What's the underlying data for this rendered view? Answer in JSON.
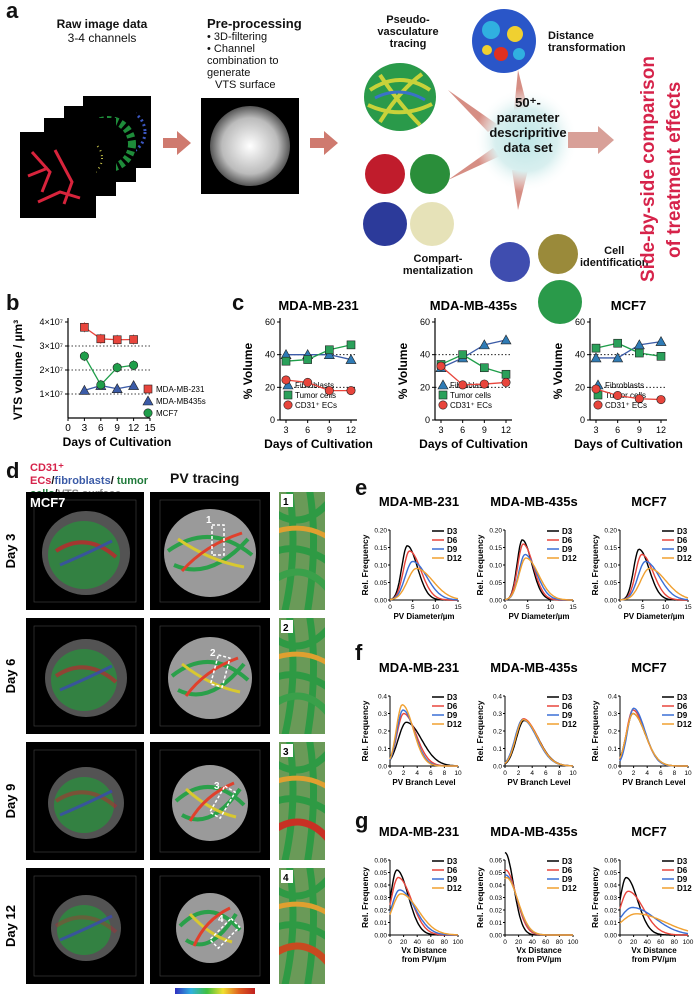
{
  "panel_a": {
    "label": "a",
    "raw": {
      "title": "Raw image data",
      "sub": "3-4 channels"
    },
    "prep": {
      "title": "Pre-processing",
      "b1": "• 3D-filtering",
      "b2": "• Channel combination to generate",
      "b3": "VTS surface"
    },
    "pseudo": {
      "l1": "Pseudo-",
      "l2": "vasculature",
      "l3": "tracing"
    },
    "dist": {
      "l1": "Distance",
      "l2": "transformation"
    },
    "center": {
      "l1": "50⁺-",
      "l2": "parameter",
      "l3": "descripritive",
      "l4": "data set"
    },
    "comp": {
      "l1": "Compart-",
      "l2": "mentalization"
    },
    "cell": {
      "l1": "Cell",
      "l2": "identification"
    },
    "side": {
      "l1": "Side-by-side comparison",
      "l2": "of treatment effects"
    },
    "colors": {
      "accent": "#d6234a",
      "arrow": "#cf7a6f"
    }
  },
  "panel_b": {
    "label": "b"
  },
  "panel_c": {
    "label": "c"
  },
  "panel_d": {
    "label": "d",
    "legend_red": "CD31⁺ ECs",
    "legend_slash1": "/",
    "legend_blue": "fibroblasts",
    "legend_slash2": "/",
    "legend_green": "tumor cells",
    "legend_slash3": "/",
    "legend_grey": "VTS surface",
    "pv_title": "PV tracing",
    "cell_line": "MCF7",
    "days": [
      "Day 3",
      "Day 6",
      "Day 9",
      "Day 12"
    ],
    "zooms": [
      "1",
      "2",
      "3",
      "4"
    ]
  },
  "panel_e": {
    "label": "e"
  },
  "panel_f": {
    "label": "f"
  },
  "panel_g": {
    "label": "g"
  },
  "chart_data": [
    {
      "id": "b",
      "type": "line",
      "x": [
        3,
        6,
        9,
        12
      ],
      "xlabel": "Days of Cultivation",
      "ylabel": "VTS volume / µm³",
      "xticks": [
        "0",
        "3",
        "6",
        "9",
        "12",
        "15"
      ],
      "yticks": [
        "1×10⁷",
        "2×10⁷",
        "3×10⁷",
        "4×10⁷"
      ],
      "xlim": [
        0,
        15
      ],
      "ylim": [
        0,
        40000000
      ],
      "dotted_y": [
        10000000,
        20000000,
        30000000
      ],
      "series": [
        {
          "name": "MDA-MB-231",
          "color": "#e8453c",
          "marker": "square",
          "values": [
            37800000,
            33000000,
            32600000,
            32700000
          ]
        },
        {
          "name": "MDA-MB435s",
          "color": "#3b5ba7",
          "marker": "triangle",
          "values": [
            11500000,
            13500000,
            12200000,
            13500000
          ]
        },
        {
          "name": "MCF7",
          "color": "#1f9e4a",
          "marker": "circle",
          "values": [
            25800000,
            13800000,
            21000000,
            22000000
          ]
        }
      ]
    },
    {
      "id": "c",
      "type": "line",
      "panels": [
        {
          "title": "MDA-MB-231",
          "x": [
            3,
            6,
            9,
            12
          ],
          "series": [
            {
              "name": "Fibroblasts",
              "values": [
                40,
                40,
                40,
                37
              ]
            },
            {
              "name": "Tumor cells",
              "values": [
                36,
                37,
                43,
                46
              ]
            },
            {
              "name": "CD31⁺ ECs",
              "values": [
                24.5,
                23,
                18,
                18
              ]
            }
          ]
        },
        {
          "title": "MDA-MB-435s",
          "x": [
            3,
            6,
            9,
            12
          ],
          "series": [
            {
              "name": "Fibroblasts",
              "values": [
                32,
                38,
                46,
                49
              ]
            },
            {
              "name": "Tumor cells",
              "values": [
                34,
                40,
                32,
                28
              ]
            },
            {
              "name": "CD31⁺ ECs",
              "values": [
                33,
                21.5,
                22,
                23
              ]
            }
          ]
        },
        {
          "title": "MCF7",
          "x": [
            3,
            6,
            9,
            12
          ],
          "series": [
            {
              "name": "Fibroblasts",
              "values": [
                38,
                38,
                46,
                48
              ]
            },
            {
              "name": "Tumor cells",
              "values": [
                44,
                47,
                41,
                39
              ]
            },
            {
              "name": "CD31⁺ ECs",
              "values": [
                19,
                15,
                13,
                12.5
              ]
            }
          ]
        }
      ],
      "xlabel": "Days of Cultivation",
      "ylabel": "% Volume",
      "xticks": [
        "3",
        "6",
        "9",
        "12"
      ],
      "yticks": [
        "0",
        "20",
        "40",
        "60"
      ],
      "ylim": [
        0,
        60
      ],
      "dotted_y": [
        20,
        40
      ],
      "styles": [
        {
          "color": "#3b5ba7",
          "marker": "triangle",
          "fill": "#2f7bb5"
        },
        {
          "color": "#1f9e4a",
          "marker": "square",
          "fill": "#2aa05a"
        },
        {
          "color": "#e8453c",
          "marker": "circle",
          "fill": "#e8453c"
        }
      ]
    },
    {
      "id": "e",
      "type": "line",
      "titles": [
        "MDA-MB-231",
        "MDA-MB-435s",
        "MCF7"
      ],
      "xlabel": "PV Diameter/µm",
      "ylabel": "Rel. Frequency",
      "xticks": [
        "0",
        "5",
        "10",
        "15"
      ],
      "yticks": [
        "0.00",
        "0.05",
        "0.10",
        "0.15",
        "0.20"
      ],
      "xlim": [
        0,
        15
      ],
      "ylim": [
        0,
        0.2
      ],
      "legend": [
        "D3",
        "D6",
        "D9",
        "D12"
      ],
      "colors": [
        "#000000",
        "#e8453c",
        "#3b6fd6",
        "#f0a030"
      ],
      "curves": [
        [
          {
            "m": 3.8,
            "p": 0.155,
            "w": 1.6
          },
          {
            "m": 4.3,
            "p": 0.14,
            "w": 1.8
          },
          {
            "m": 5.0,
            "p": 0.11,
            "w": 2.2
          },
          {
            "m": 5.8,
            "p": 0.09,
            "w": 2.6
          }
        ],
        [
          {
            "m": 3.8,
            "p": 0.172,
            "w": 1.5
          },
          {
            "m": 4.0,
            "p": 0.16,
            "w": 1.6
          },
          {
            "m": 4.4,
            "p": 0.13,
            "w": 1.8
          },
          {
            "m": 4.6,
            "p": 0.12,
            "w": 2.0
          }
        ],
        [
          {
            "m": 4.2,
            "p": 0.145,
            "w": 1.6
          },
          {
            "m": 4.8,
            "p": 0.13,
            "w": 1.8
          },
          {
            "m": 5.6,
            "p": 0.11,
            "w": 2.2
          },
          {
            "m": 6.5,
            "p": 0.09,
            "w": 2.6
          }
        ]
      ]
    },
    {
      "id": "f",
      "type": "line",
      "titles": [
        "MDA-MB-231",
        "MDA-MB-435s",
        "MCF7"
      ],
      "xlabel": "PV Branch Level",
      "ylabel": "Rel. Frequency",
      "xticks": [
        "0",
        "2",
        "4",
        "6",
        "8",
        "10"
      ],
      "yticks": [
        "0.0",
        "0.1",
        "0.2",
        "0.3",
        "0.4"
      ],
      "xlim": [
        0,
        10
      ],
      "ylim": [
        0,
        0.4
      ],
      "legend": [
        "D3",
        "D6",
        "D9",
        "D12"
      ],
      "colors": [
        "#000000",
        "#e8453c",
        "#3b6fd6",
        "#f0a030"
      ],
      "curves": [
        [
          {
            "m": 2.4,
            "p": 0.25,
            "w": 1.6
          },
          {
            "m": 2.0,
            "p": 0.3,
            "w": 1.3
          },
          {
            "m": 1.9,
            "p": 0.32,
            "w": 1.2
          },
          {
            "m": 1.8,
            "p": 0.35,
            "w": 1.15
          }
        ],
        [
          {
            "m": 2.8,
            "p": 0.26,
            "w": 1.5
          },
          {
            "m": 2.7,
            "p": 0.27,
            "w": 1.5
          },
          {
            "m": 2.6,
            "p": 0.265,
            "w": 1.5
          },
          {
            "m": 2.7,
            "p": 0.265,
            "w": 1.5
          }
        ],
        [
          {
            "m": 1.9,
            "p": 0.3,
            "w": 1.3
          },
          {
            "m": 1.9,
            "p": 0.32,
            "w": 1.25
          },
          {
            "m": 2.0,
            "p": 0.33,
            "w": 1.2
          },
          {
            "m": 1.9,
            "p": 0.3,
            "w": 1.3
          }
        ]
      ]
    },
    {
      "id": "g",
      "type": "line",
      "titles": [
        "MDA-MB-231",
        "MDA-MB-435s",
        "MCF7"
      ],
      "xlabel": "Vx Distance from PV/µm",
      "ylabel": "Rel. Frequency",
      "xticks": [
        "0",
        "20",
        "40",
        "60",
        "80",
        "100"
      ],
      "yticks": [
        "0.00",
        "0.01",
        "0.02",
        "0.03",
        "0.04",
        "0.05",
        "0.06"
      ],
      "xlim": [
        0,
        100
      ],
      "ylim": [
        0,
        0.06
      ],
      "legend": [
        "D3",
        "D6",
        "D9",
        "D12"
      ],
      "colors": [
        "#000000",
        "#e8453c",
        "#3b6fd6",
        "#f0a030"
      ],
      "curves": [
        [
          {
            "m": 10,
            "p": 0.052,
            "w": 12
          },
          {
            "m": 12,
            "p": 0.046,
            "w": 14
          },
          {
            "m": 14,
            "p": 0.036,
            "w": 16
          },
          {
            "m": 16,
            "p": 0.033,
            "w": 18
          }
        ],
        [
          {
            "m": 0,
            "p": 0.066,
            "w": 9
          },
          {
            "m": 1,
            "p": 0.052,
            "w": 11
          },
          {
            "m": 1,
            "p": 0.048,
            "w": 12
          },
          {
            "m": 2,
            "p": 0.046,
            "w": 12
          }
        ],
        [
          {
            "m": 9,
            "p": 0.046,
            "w": 12
          },
          {
            "m": 12,
            "p": 0.035,
            "w": 16
          },
          {
            "m": 18,
            "p": 0.022,
            "w": 24
          },
          {
            "m": 24,
            "p": 0.017,
            "w": 30
          }
        ]
      ]
    }
  ]
}
